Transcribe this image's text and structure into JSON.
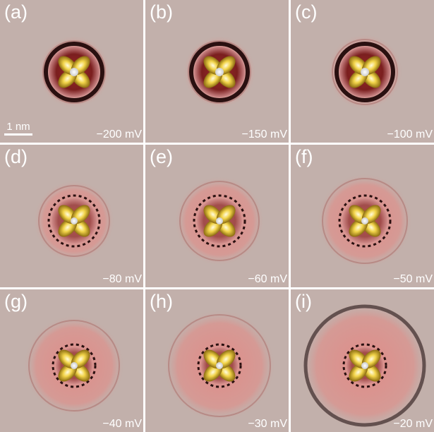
{
  "scale_bar": "1 nm",
  "panels": [
    {
      "label": "(a)",
      "bias": "−200 mV"
    },
    {
      "label": "(b)",
      "bias": "−150 mV"
    },
    {
      "label": "(c)",
      "bias": "−100 mV"
    },
    {
      "label": "(d)",
      "bias": "−80 mV"
    },
    {
      "label": "(e)",
      "bias": "−60 mV"
    },
    {
      "label": "(f)",
      "bias": "−50 mV"
    },
    {
      "label": "(g)",
      "bias": "−40 mV"
    },
    {
      "label": "(h)",
      "bias": "−30 mV"
    },
    {
      "label": "(i)",
      "bias": "−20 mV"
    }
  ]
}
